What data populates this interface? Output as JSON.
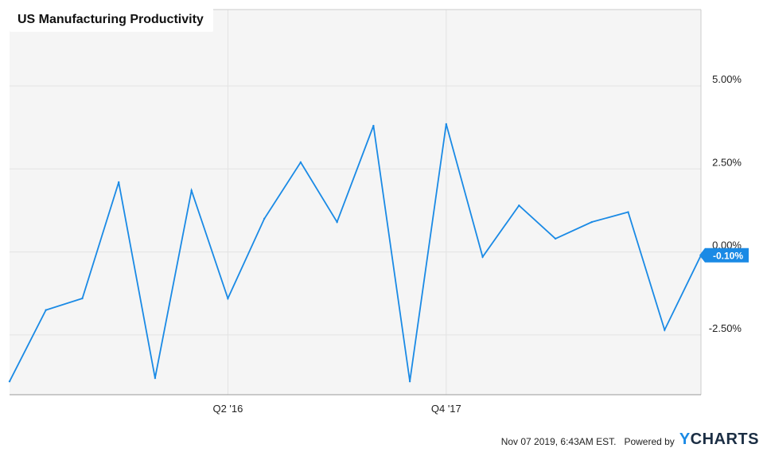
{
  "title": "US Manufacturing Productivity",
  "footer": {
    "timestamp": "Nov 07 2019, 6:43AM EST.",
    "powered_by": "Powered by",
    "logo_y": "Y",
    "logo_rest": "CHARTS"
  },
  "colors": {
    "line": "#1a8ae5",
    "grid": "#e3e3e3",
    "plot_background": "#f5f5f5",
    "frame": "#999999",
    "badge": "#1a8ae5"
  },
  "chart_data": {
    "type": "line",
    "title": "US Manufacturing Productivity",
    "x_tick_labels": [
      "Q2 '16",
      "Q4 '17"
    ],
    "y_tick_labels": [
      "5.00%",
      "2.50%",
      "0.00%",
      "-2.50%"
    ],
    "y_ticks": [
      5.0,
      2.5,
      0.0,
      -2.5
    ],
    "ylim": [
      -4.3,
      7.3
    ],
    "y_axis_position": "right",
    "grid": true,
    "series": [
      {
        "values": [
          -3.9,
          -1.75,
          -1.4,
          2.1,
          -3.8,
          1.85,
          -1.4,
          1.0,
          2.7,
          0.9,
          3.8,
          -3.9,
          3.85,
          -0.15,
          1.4,
          0.4,
          0.9,
          1.2,
          -2.35,
          -0.1
        ]
      }
    ],
    "x_tick_indices": [
      6,
      12
    ],
    "last_value_label": "-0.10%"
  }
}
